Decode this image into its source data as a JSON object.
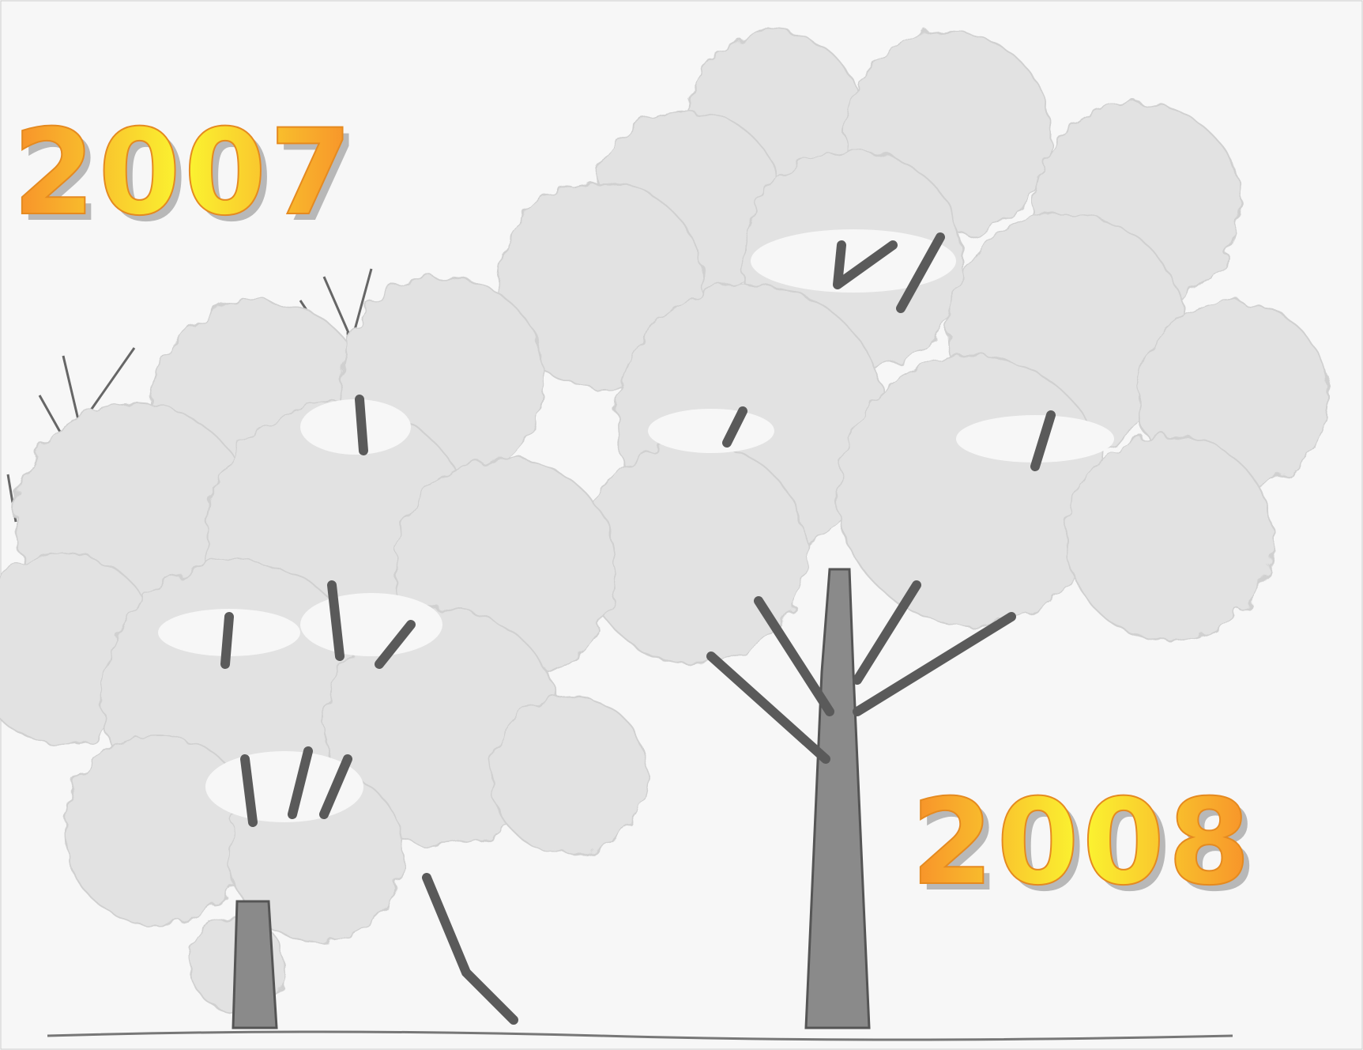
{
  "year_labels": [
    "2007",
    "2008"
  ]
}
